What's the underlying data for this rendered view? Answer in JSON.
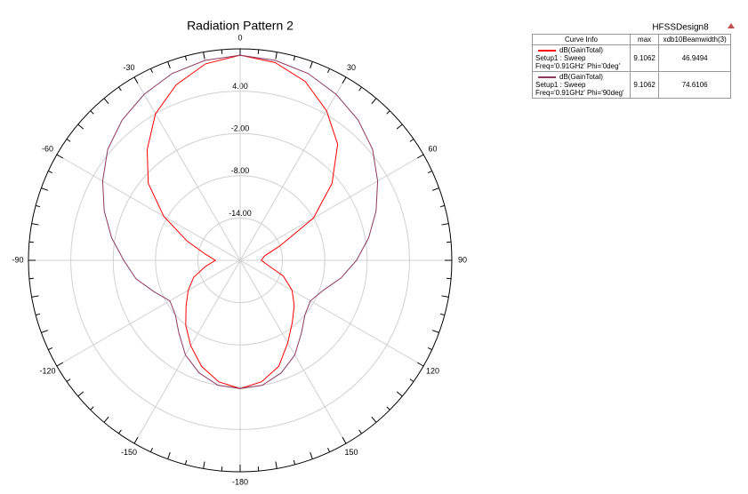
{
  "chart_data": {
    "type": "polar",
    "title": "Radiation Pattern 2",
    "design_name": "HFSSDesign8",
    "x": [
      -180,
      -170,
      -160,
      -150,
      -140,
      -130,
      -120,
      -110,
      -100,
      -90,
      -80,
      -70,
      -60,
      -50,
      -40,
      -30,
      -20,
      -10,
      0,
      10,
      20,
      30,
      40,
      50,
      60,
      70,
      80,
      90,
      100,
      110,
      120,
      130,
      140,
      150,
      160,
      170,
      180
    ],
    "series": [
      {
        "name": "dB(GainTotal)",
        "color": "#ff0000",
        "values": [
          -1.8,
          -2.5,
          -4,
          -6,
          -8,
          -10,
          -11.5,
          -13,
          -15,
          -16.5,
          -15,
          -12,
          -7.5,
          -3,
          0.5,
          4,
          6.5,
          8.3,
          9.1,
          8.5,
          7,
          4.5,
          1.5,
          -3,
          -8,
          -14,
          -16.5,
          -17,
          -16,
          -13.5,
          -11.5,
          -10,
          -8.5,
          -6.5,
          -4,
          -2.5,
          -1.8
        ]
      },
      {
        "name": "dB(GainTotal)",
        "color": "#8b3a62",
        "values": [
          -1.8,
          -2,
          -3,
          -4.5,
          -6.5,
          -8,
          -8.5,
          -7,
          -5,
          -3.5,
          -1.5,
          0.5,
          2.5,
          4.5,
          6,
          7.2,
          8.2,
          8.8,
          9.1,
          8.8,
          8.2,
          7.2,
          6,
          4.5,
          2.5,
          0.5,
          -1.5,
          -3.5,
          -5.5,
          -7.5,
          -8.5,
          -8,
          -6.5,
          -4.5,
          -3,
          -2,
          -1.8
        ]
      }
    ],
    "rlim": [
      -20,
      10
    ],
    "rticks": [
      {
        "value": 4,
        "label": "4.00"
      },
      {
        "value": -2,
        "label": "-2.00"
      },
      {
        "value": -8,
        "label": "-8.00"
      },
      {
        "value": -14,
        "label": "-14.00"
      }
    ],
    "thetaticks": [
      0,
      30,
      60,
      90,
      120,
      150,
      -180,
      -150,
      -120,
      -90,
      -60,
      -30
    ],
    "grid": true,
    "legend_table": {
      "columns": [
        "Curve Info",
        "max",
        "xdb10Beamwidth(3)"
      ],
      "rows": [
        {
          "setup": "Setup1 : Sweep",
          "params": "Freq='0.91GHz' Phi='0deg'",
          "max": 9.1062,
          "beamwidth": 46.9494
        },
        {
          "setup": "Setup1 : Sweep",
          "params": "Freq='0.91GHz' Phi='90deg'",
          "max": 9.1062,
          "beamwidth": 74.6106
        }
      ]
    }
  }
}
